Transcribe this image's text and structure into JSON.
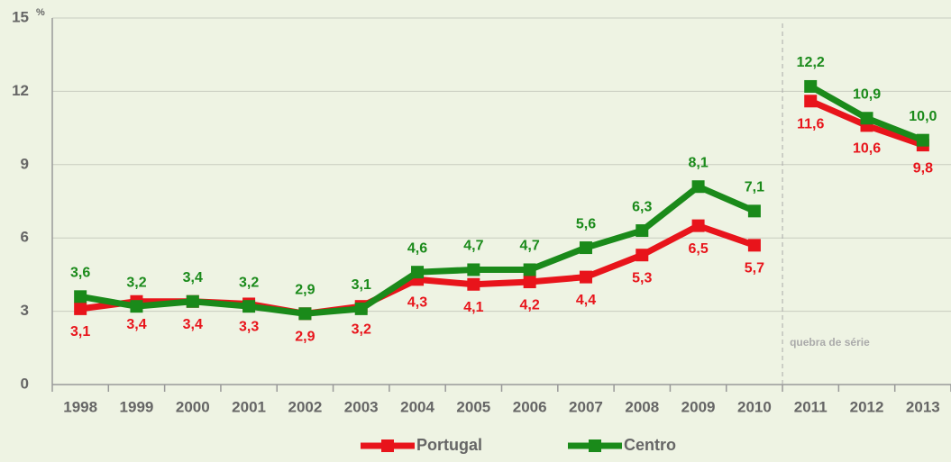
{
  "chart_data": {
    "type": "line",
    "y_label": "%",
    "categories": [
      "1998",
      "1999",
      "2000",
      "2001",
      "2002",
      "2003",
      "2004",
      "2005",
      "2006",
      "2007",
      "2008",
      "2009",
      "2010",
      "2011",
      "2012",
      "2013"
    ],
    "series": [
      {
        "name": "Portugal",
        "color": "#e8141b",
        "values": [
          3.1,
          3.4,
          3.4,
          3.3,
          2.9,
          3.2,
          4.3,
          4.1,
          4.2,
          4.4,
          5.3,
          6.5,
          5.7,
          11.6,
          10.6,
          9.8
        ],
        "value_labels": [
          "3,1",
          "3,4",
          "3,4",
          "3,3",
          "2,9",
          "3,2",
          "4,3",
          "4,1",
          "4,2",
          "4,4",
          "5,3",
          "6,5",
          "5,7",
          "11,6",
          "10,6",
          "9,8"
        ]
      },
      {
        "name": "Centro",
        "color": "#1a8a1a",
        "values": [
          3.6,
          3.2,
          3.4,
          3.2,
          2.9,
          3.1,
          4.6,
          4.7,
          4.7,
          5.6,
          6.3,
          8.1,
          7.1,
          12.2,
          10.9,
          10.0
        ],
        "value_labels": [
          "3,6",
          "3,2",
          "3,4",
          "3,2",
          "2,9",
          "3,1",
          "4,6",
          "4,7",
          "4,7",
          "5,6",
          "6,3",
          "8,1",
          "7,1",
          "12,2",
          "10,9",
          "10,0"
        ]
      }
    ],
    "series_break": {
      "label": "quebra de série",
      "after": "2010"
    },
    "ylim": [
      0,
      15
    ],
    "yticks": [
      0,
      3,
      6,
      9,
      12,
      15
    ],
    "grid": true,
    "legend": "bottom"
  }
}
